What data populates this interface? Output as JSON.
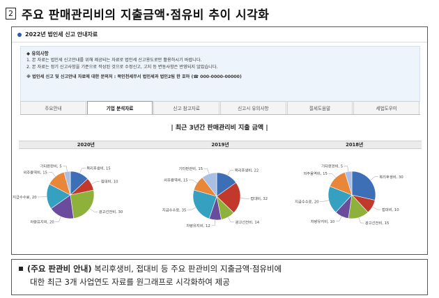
{
  "heading": {
    "number": "2",
    "title": "주요 판매관리비의 지출금액·점유비 추이 시각화"
  },
  "window": {
    "title": "2022년 법인세 신고 안내자료"
  },
  "notice": {
    "title": "◆ 유의사항",
    "line1": "1. 본 자료는 법인세 신고안내를 위해 제공되는 자료로 법인세 신고용도로만 활용하시기 바랍니다.",
    "line2": "2. 본 자료는 정기 신고사항을 기준으로 작성된 것으로 수정신고, 고지 등 변동사항은 반영되지 않았습니다.",
    "contact": "※ 법인세 신고 및 신고안내 자료에 대한 문의처 : 북인천세무서 법인세과 법인2팀  한 호아 (☎ 000-0000-00000)"
  },
  "tabs": [
    {
      "label": "주요안내",
      "active": false
    },
    {
      "label": "기업 분석자료",
      "active": true
    },
    {
      "label": "신고 참고자료",
      "active": false
    },
    {
      "label": "신고시 유의사항",
      "active": false
    },
    {
      "label": "절세도움말",
      "active": false
    },
    {
      "label": "세법도우미",
      "active": false
    }
  ],
  "section_title": "| 최근 3년간 판매관리비 지출 금액 |",
  "colors": {
    "복리후생비": "#3d6fb6",
    "접대비": "#c0392b",
    "광고선전비": "#8db13a",
    "차량유지비": "#6a4c9c",
    "지급수수료": "#35a0c0",
    "외주용역비": "#e8863a",
    "기타판관비": "#a9c0e4"
  },
  "chart_data": [
    {
      "type": "pie",
      "title": "2020년",
      "categories": [
        "복리후생비",
        "접대비",
        "광고선전비",
        "차량유지비",
        "지급수수료",
        "외주용역비",
        "기타판관비"
      ],
      "values": [
        15,
        10,
        30,
        20,
        20,
        15,
        5
      ],
      "labels": [
        "복리후생비, 15",
        "접대비, 10",
        "광고선전비, 30",
        "차량유지비, 20",
        "지급수수료, 20",
        "외주용역비, 15",
        "기타판관비, 5"
      ]
    },
    {
      "type": "pie",
      "title": "2019년",
      "categories": [
        "복리후생비",
        "접대비",
        "광고선전비",
        "차량유지비",
        "지급수수료",
        "외주용역비",
        "기타판관비"
      ],
      "values": [
        22,
        32,
        14,
        12,
        35,
        15,
        15
      ],
      "labels": [
        "복리후생비, 22",
        "접대비, 32",
        "광고선전비, 14",
        "차량유지비, 12",
        "지급수수료, 35",
        "외주용역비, 15",
        "기타판관비, 15"
      ]
    },
    {
      "type": "pie",
      "title": "2018년",
      "categories": [
        "복리후생비",
        "접대비",
        "광고선전비",
        "차량유지비",
        "지급수수료",
        "외주용역비",
        "기타판관비"
      ],
      "values": [
        30,
        10,
        15,
        10,
        20,
        15,
        5
      ],
      "labels": [
        "복리후생비, 30",
        "접대비, 10",
        "광고선전비, 15",
        "차량유지비, 10",
        "지급수수료, 20",
        "외주용역비, 15",
        "기타판관비, 5"
      ]
    }
  ],
  "bullet": {
    "bold": "(주요 판관비 안내)",
    "line1": " 복리후생비, 접대비 등 주요 판관비의 지출금액·점유비에",
    "line2": "대한 최근 3개 사업연도 자료를 원그래프로 시각화하여 제공"
  }
}
